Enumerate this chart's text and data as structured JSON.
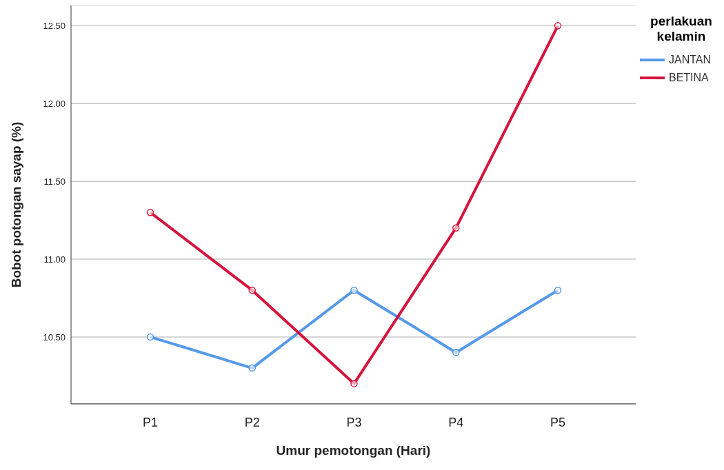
{
  "chart_data": {
    "type": "line",
    "xlabel": "Umur pemotongan (Hari)",
    "ylabel": "Bobot potongan sayap (%)",
    "legend_title": "perlakuan kelamin",
    "categories": [
      "P1",
      "P2",
      "P3",
      "P4",
      "P5"
    ],
    "series": [
      {
        "name": "JANTAN",
        "color": "#5599e8",
        "values": [
          10.5,
          10.3,
          10.8,
          10.4,
          10.8
        ]
      },
      {
        "name": "BETINA",
        "color": "#d4143c",
        "values": [
          11.3,
          10.8,
          10.2,
          11.2,
          12.5
        ]
      }
    ],
    "ylim": [
      10.07,
      12.63
    ],
    "yticks": [
      {
        "value": 10.5,
        "label": "10.50"
      },
      {
        "value": 11,
        "label": "11.00"
      },
      {
        "value": 11.5,
        "label": "11.50"
      },
      {
        "value": 12,
        "label": "12.00"
      },
      {
        "value": 12.5,
        "label": "12.50"
      }
    ],
    "grid": "y",
    "legend": "top right",
    "marker": "circle",
    "line_style": "solid"
  }
}
